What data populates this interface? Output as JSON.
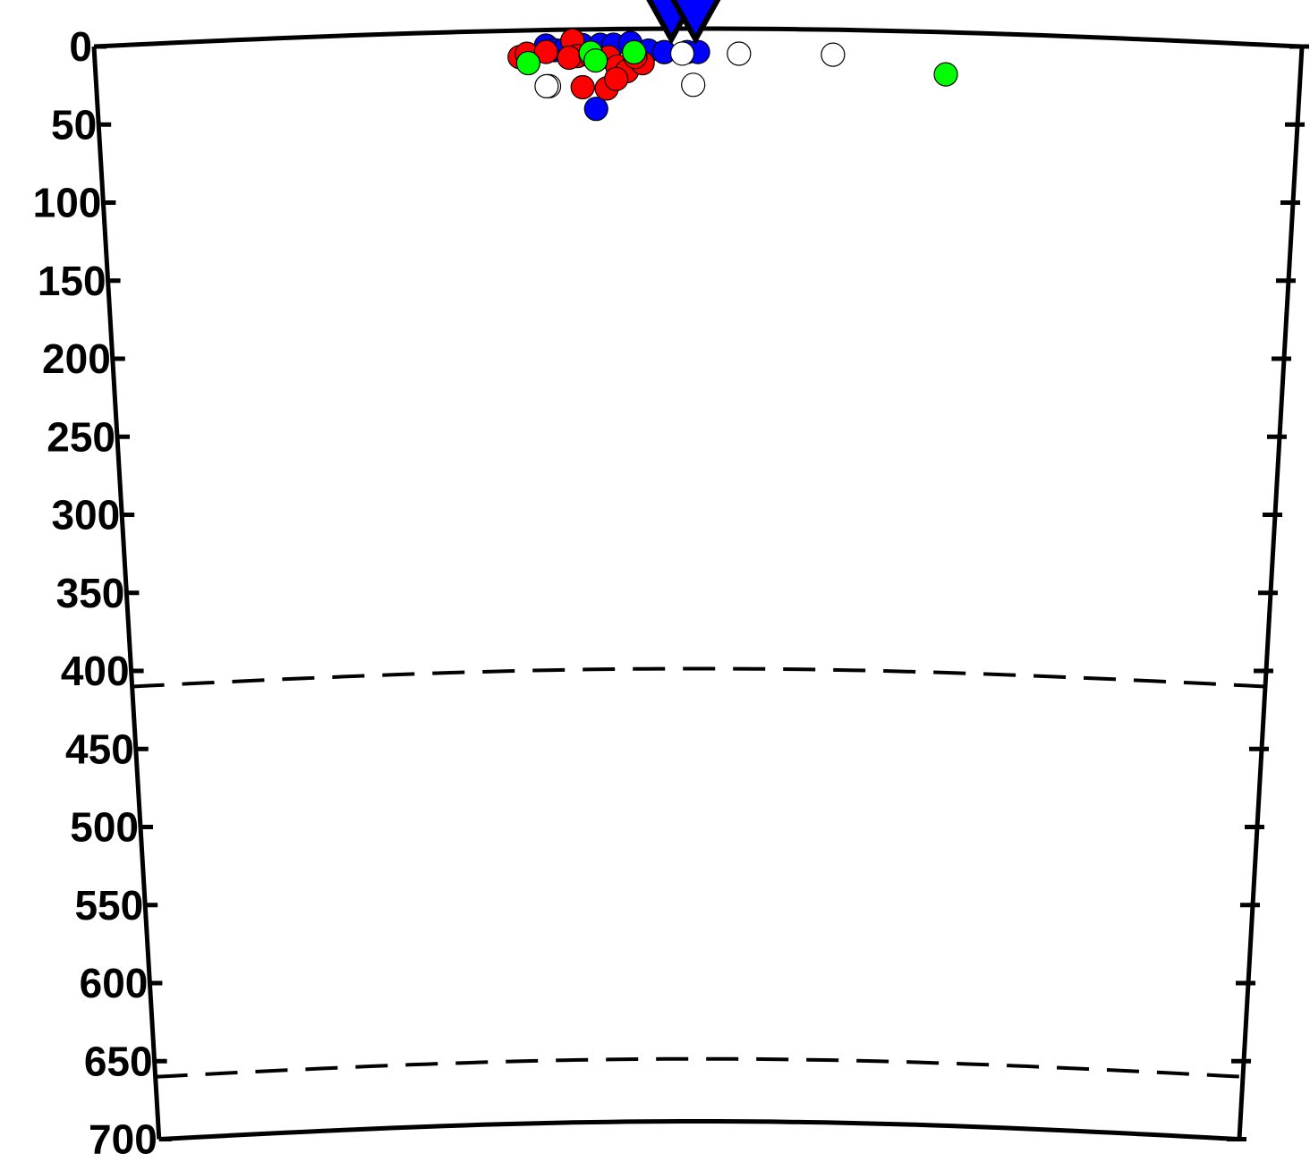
{
  "chart_data": {
    "type": "scatter",
    "title": "",
    "xlabel": "",
    "ylabel": "",
    "ylim": [
      0,
      700
    ],
    "xlim": [
      0,
      100
    ],
    "y_inverted": true,
    "y_ticks": [
      "0",
      "50",
      "100",
      "150",
      "200",
      "250",
      "300",
      "350",
      "400",
      "450",
      "500",
      "550",
      "600",
      "650",
      "700"
    ],
    "grid": false,
    "legend": "none",
    "reference_depths": [
      410,
      660
    ],
    "colors": {
      "blue": "#0000ff",
      "red": "#ff0000",
      "green": "#00ff00",
      "open": "#ffffff",
      "outline": "#000000"
    },
    "stations": [
      {
        "x": 47.8,
        "marker": "inverted-triangle",
        "color": "#0000ff"
      },
      {
        "x": 49.8,
        "marker": "inverted-triangle",
        "color": "#0000ff"
      }
    ],
    "series": [
      {
        "color": "#0000ff",
        "points": [
          [
            37.4,
            10
          ],
          [
            38.1,
            13
          ],
          [
            38.9,
            13
          ],
          [
            40.4,
            10
          ],
          [
            41.9,
            10
          ],
          [
            43.0,
            10
          ],
          [
            44.4,
            9
          ],
          [
            45.9,
            14
          ],
          [
            47.2,
            15
          ],
          [
            49.1,
            15
          ],
          [
            50.0,
            15
          ],
          [
            41.5,
            51
          ]
        ]
      },
      {
        "color": "#ff0000",
        "points": [
          [
            35.2,
            17
          ],
          [
            35.8,
            15
          ],
          [
            37.4,
            14
          ],
          [
            39.6,
            7
          ],
          [
            40.0,
            17
          ],
          [
            39.3,
            18
          ],
          [
            41.1,
            17
          ],
          [
            42.6,
            18
          ],
          [
            43.3,
            24
          ],
          [
            44.1,
            27
          ],
          [
            45.4,
            22
          ],
          [
            44.8,
            18
          ],
          [
            40.4,
            37
          ],
          [
            42.4,
            38
          ],
          [
            43.2,
            32
          ]
        ]
      },
      {
        "color": "#00ff00",
        "points": [
          [
            35.9,
            21
          ],
          [
            41.1,
            15
          ],
          [
            41.5,
            20
          ],
          [
            44.7,
            15
          ],
          [
            70.6,
            27
          ]
        ]
      },
      {
        "color": "#ffffff",
        "points": [
          [
            37.6,
            36
          ],
          [
            37.4,
            36
          ],
          [
            49.6,
            36
          ],
          [
            48.7,
            16
          ],
          [
            53.4,
            16
          ],
          [
            61.2,
            16
          ]
        ]
      }
    ]
  }
}
